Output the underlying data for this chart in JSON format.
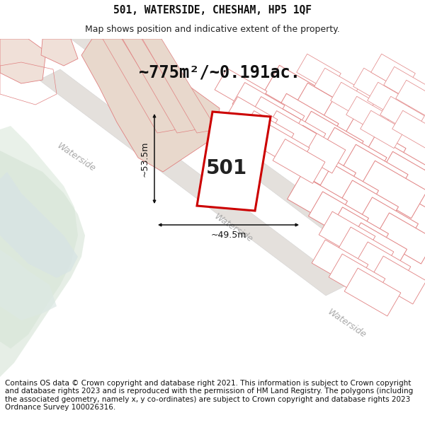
{
  "title": "501, WATERSIDE, CHESHAM, HP5 1QF",
  "subtitle": "Map shows position and indicative extent of the property.",
  "area_text": "~775m²/~0.191ac.",
  "dim_width": "~49.5m",
  "dim_height": "~53.5m",
  "label": "501",
  "footer": "Contains OS data © Crown copyright and database right 2021. This information is subject to Crown copyright and database rights 2023 and is reproduced with the permission of HM Land Registry. The polygons (including the associated geometry, namely x, y co-ordinates) are subject to Crown copyright and database rights 2023 Ordnance Survey 100026316.",
  "title_fontsize": 10.5,
  "subtitle_fontsize": 9,
  "area_fontsize": 17,
  "label_fontsize": 20,
  "dim_fontsize": 9,
  "footer_fontsize": 7.5,
  "bg_white": "#ffffff",
  "map_bg": "#f8f6f4",
  "water_fill": "#dce8dc",
  "water_river": "#e8eee8",
  "river_channel": "#d8e4e4",
  "road_fill": "#e8e4e0",
  "beige_area": "#e8d8cc",
  "parcel_outline": "#e08080",
  "parcel_fill": "#ffffff",
  "main_plot_outline": "#cc0000",
  "main_plot_fill": "#ffffff",
  "dim_color": "#111111",
  "road_label_color": "#aaaaaa",
  "label_color": "#222222",
  "footer_color": "#111111"
}
